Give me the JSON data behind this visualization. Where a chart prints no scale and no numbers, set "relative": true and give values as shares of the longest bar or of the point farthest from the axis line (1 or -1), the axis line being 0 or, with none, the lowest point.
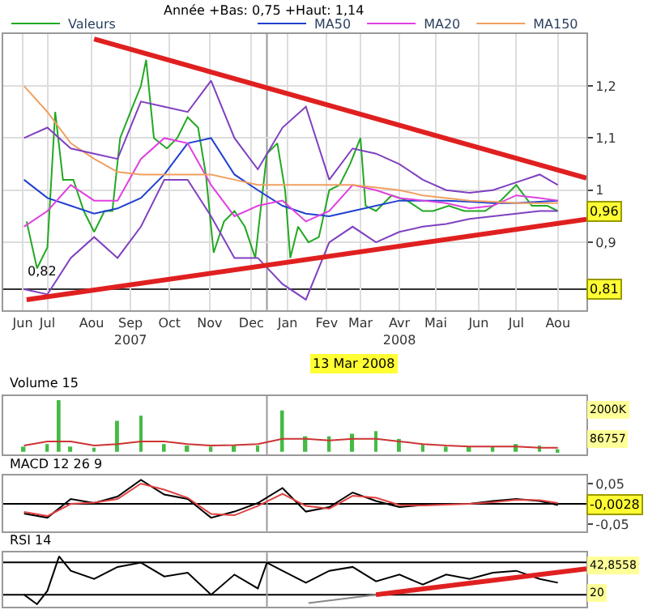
{
  "chart_data": [
    {
      "type": "line",
      "subtitle": "Année +Bas: 0,75 +Haut: 1,14",
      "legend": "top",
      "grid": true,
      "xlim": [
        "2007-06-12",
        "2008-09-03"
      ],
      "xticks": [
        {
          "value": "2007-06-27",
          "label": "Jun"
        },
        {
          "value": "2007-07-16",
          "label": "Jul"
        },
        {
          "value": "2007-08-19",
          "label": "Aou"
        },
        {
          "value": "2007-09-18",
          "label": "Sep\n2007"
        },
        {
          "value": "2007-10-18",
          "label": "Oct"
        },
        {
          "value": "2007-11-18",
          "label": "Nov"
        },
        {
          "value": "2007-12-20",
          "label": "Dec"
        },
        {
          "value": "2008-01-17",
          "label": "Jan"
        },
        {
          "value": "2008-02-16",
          "label": "Fev"
        },
        {
          "value": "2008-03-13",
          "label": "Mar"
        },
        {
          "value": "2008-04-12",
          "label": "Avr\n2008"
        },
        {
          "value": "2008-05-10",
          "label": "Mai"
        },
        {
          "value": "2008-06-12",
          "label": "Jun"
        },
        {
          "value": "2008-07-11",
          "label": "Jul"
        },
        {
          "value": "2008-08-12",
          "label": "Aou"
        }
      ],
      "ylim": [
        0.77,
        1.3
      ],
      "yticks": [
        {
          "value": 0.9,
          "label": "0,9"
        },
        {
          "value": 1,
          "label": "1"
        },
        {
          "value": 1.1,
          "label": "1,1"
        },
        {
          "value": 1.2,
          "label": "1,2"
        }
      ],
      "x": [
        "2007-06-28",
        "2007-07-16",
        "2007-08-03",
        "2007-08-21",
        "2007-09-08",
        "2007-09-26",
        "2007-10-14",
        "2007-11-01",
        "2007-11-19",
        "2007-12-07",
        "2007-12-25",
        "2008-01-13",
        "2008-01-31",
        "2008-02-18",
        "2008-03-07",
        "2008-03-25",
        "2008-04-12",
        "2008-04-30",
        "2008-05-18",
        "2008-06-05",
        "2008-06-23",
        "2008-07-11",
        "2008-07-29",
        "2008-08-12"
      ],
      "series": [
        {
          "name": "Valeurs",
          "color": "#22a822",
          "x": [
            "2007-06-30",
            "2007-07-08",
            "2007-07-16",
            "2007-07-22",
            "2007-07-28",
            "2007-08-05",
            "2007-08-13",
            "2007-08-21",
            "2007-08-29",
            "2007-09-04",
            "2007-09-10",
            "2007-09-18",
            "2007-09-26",
            "2007-09-30",
            "2007-10-06",
            "2007-10-16",
            "2007-10-24",
            "2007-11-01",
            "2007-11-09",
            "2007-11-15",
            "2007-11-21",
            "2007-11-29",
            "2007-12-07",
            "2007-12-15",
            "2007-12-23",
            "2008-01-01",
            "2008-01-09",
            "2008-01-15",
            "2008-01-19",
            "2008-01-25",
            "2008-02-02",
            "2008-02-10",
            "2008-02-18",
            "2008-02-26",
            "2008-03-05",
            "2008-03-13",
            "2008-03-17",
            "2008-03-25",
            "2008-04-06",
            "2008-04-18",
            "2008-04-30",
            "2008-05-08",
            "2008-05-20",
            "2008-06-01",
            "2008-06-17",
            "2008-06-29",
            "2008-07-11",
            "2008-07-23",
            "2008-08-04",
            "2008-08-12"
          ],
          "values": [
            0.94,
            0.85,
            0.89,
            1.15,
            1.02,
            1.02,
            0.96,
            0.92,
            0.96,
            0.96,
            1.1,
            1.15,
            1.2,
            1.25,
            1.1,
            1.08,
            1.1,
            1.14,
            1.12,
            1.03,
            0.88,
            0.94,
            0.96,
            0.93,
            0.87,
            1.07,
            1.09,
            1.0,
            0.87,
            0.93,
            0.9,
            0.91,
            1.0,
            1.01,
            1.05,
            1.1,
            0.97,
            0.96,
            0.99,
            0.98,
            0.96,
            0.96,
            0.97,
            0.96,
            0.96,
            0.98,
            1.01,
            0.97,
            0.97,
            0.96
          ]
        },
        {
          "name": "MA50",
          "color": "#2040d0",
          "values": [
            1.02,
            0.985,
            0.97,
            0.955,
            0.965,
            0.985,
            1.03,
            1.09,
            1.1,
            1.03,
            1.0,
            0.97,
            0.955,
            0.95,
            0.96,
            0.97,
            0.98,
            0.98,
            0.98,
            0.978,
            0.975,
            0.975,
            0.978,
            0.98
          ]
        },
        {
          "name": "MA20",
          "color": "#e040e0",
          "values": [
            0.93,
            0.96,
            1.01,
            0.98,
            0.98,
            1.06,
            1.1,
            1.09,
            1.01,
            0.95,
            0.97,
            0.98,
            0.94,
            0.96,
            1.01,
            1.0,
            0.985,
            0.98,
            0.975,
            0.965,
            0.97,
            0.99,
            0.985,
            0.98
          ]
        },
        {
          "name": "MA150",
          "color": "#f0a060",
          "values": [
            1.2,
            1.15,
            1.09,
            1.06,
            1.035,
            1.03,
            1.03,
            1.03,
            1.03,
            1.02,
            1.01,
            1.01,
            1.01,
            1.01,
            1.01,
            1.005,
            1.0,
            0.99,
            0.985,
            0.98,
            0.978,
            0.975,
            0.975,
            0.975
          ]
        },
        {
          "color": "#8040c0",
          "values": [
            1.1,
            1.12,
            1.08,
            1.07,
            1.06,
            1.17,
            1.16,
            1.15,
            1.21,
            1.1,
            1.04,
            1.12,
            1.16,
            1.02,
            1.08,
            1.07,
            1.05,
            1.02,
            1.0,
            0.995,
            1.0,
            1.015,
            1.03,
            1.01
          ]
        },
        {
          "color": "#8040c0",
          "values": [
            0.81,
            0.8,
            0.87,
            0.91,
            0.87,
            0.93,
            1.02,
            1.02,
            0.95,
            0.87,
            0.87,
            0.82,
            0.79,
            0.9,
            0.93,
            0.9,
            0.92,
            0.93,
            0.935,
            0.945,
            0.95,
            0.955,
            0.96,
            0.96
          ]
        },
        {
          "type": "line",
          "color": "#e02020",
          "x": [
            "2007-08-21",
            "2008-09-03"
          ],
          "values": [
            1.29,
            1.023
          ]
        },
        {
          "type": "line",
          "color": "#e02020",
          "x": [
            "2007-06-30",
            "2008-09-03"
          ],
          "values": [
            0.79,
            0.944
          ]
        }
      ],
      "ref_lines": [
        {
          "axis": "y",
          "value": 0.81,
          "label": "0,81",
          "color": "#333333"
        },
        {
          "axis": "x",
          "value": "2008-01-01",
          "color": "#999999"
        }
      ],
      "annotations": [
        {
          "text": "0,96",
          "y": 0.96
        },
        {
          "text": "0,82",
          "x": "2007-06-28",
          "y": 0.825
        },
        "13 Mar 2008"
      ]
    },
    {
      "type": "bar",
      "title": "Volume 15",
      "relative": true,
      "grid": "x",
      "tick_labels": false,
      "xlim": [
        "2007-06-12",
        "2008-09-03"
      ],
      "x": [
        "2007-06-28",
        "2007-07-16",
        "2007-07-25",
        "2007-08-03",
        "2007-08-21",
        "2007-09-08",
        "2007-09-26",
        "2007-10-14",
        "2007-11-01",
        "2007-11-19",
        "2007-12-07",
        "2007-12-25",
        "2008-01-13",
        "2008-01-31",
        "2008-02-18",
        "2008-03-07",
        "2008-03-25",
        "2008-04-12",
        "2008-04-30",
        "2008-05-18",
        "2008-06-05",
        "2008-06-23",
        "2008-07-11",
        "2008-07-29",
        "2008-08-12"
      ],
      "series": [
        {
          "color": "#44bb44",
          "values": [
            0.1,
            0.15,
            1.0,
            0.1,
            0.08,
            0.6,
            0.7,
            0.15,
            0.12,
            0.1,
            0.12,
            0.12,
            0.8,
            0.3,
            0.3,
            0.35,
            0.4,
            0.25,
            0.15,
            0.1,
            0.1,
            0.1,
            0.15,
            0.12,
            0.05
          ]
        },
        {
          "type": "line",
          "color": "#cc3333",
          "values": [
            0.12,
            0.2,
            0.2,
            0.2,
            0.12,
            0.15,
            0.2,
            0.2,
            0.15,
            0.12,
            0.13,
            0.15,
            0.25,
            0.25,
            0.22,
            0.25,
            0.25,
            0.2,
            0.15,
            0.12,
            0.1,
            0.1,
            0.1,
            0.08,
            0.08
          ]
        }
      ],
      "ref_lines": [
        {
          "axis": "x",
          "value": "2008-01-01",
          "color": "#999999"
        }
      ],
      "annotations": [
        "2000K",
        "86757"
      ]
    },
    {
      "type": "line",
      "title": "MACD 12 26 9",
      "grid": "x",
      "tick_labels": "y",
      "xlim": [
        "2007-06-12",
        "2008-09-03"
      ],
      "ylim": [
        -0.067,
        0.069
      ],
      "yticks": [
        {
          "value": 0.05,
          "label": "0,05"
        },
        {
          "value": -0.05,
          "label": "-0,05"
        }
      ],
      "x": [
        "2007-06-28",
        "2007-07-16",
        "2007-08-03",
        "2007-08-21",
        "2007-09-08",
        "2007-09-26",
        "2007-10-14",
        "2007-11-01",
        "2007-11-19",
        "2007-12-07",
        "2007-12-25",
        "2008-01-13",
        "2008-01-31",
        "2008-02-18",
        "2008-03-07",
        "2008-03-25",
        "2008-04-12",
        "2008-04-30",
        "2008-05-18",
        "2008-06-05",
        "2008-06-23",
        "2008-07-11",
        "2008-07-29",
        "2008-08-12"
      ],
      "series": [
        {
          "color": "#000000",
          "values": [
            -0.024,
            -0.034,
            0.012,
            0.002,
            0.018,
            0.059,
            0.023,
            0.012,
            -0.034,
            -0.019,
            0.002,
            0.039,
            -0.019,
            -0.008,
            0.028,
            0.007,
            -0.008,
            -0.003,
            0.0,
            0.0,
            0.007,
            0.012,
            0.007,
            -0.0028
          ]
        },
        {
          "color": "#e04040",
          "values": [
            -0.02,
            -0.03,
            0.0,
            0.003,
            0.012,
            0.05,
            0.035,
            0.015,
            -0.025,
            -0.028,
            -0.005,
            0.025,
            -0.005,
            -0.012,
            0.02,
            0.015,
            -0.003,
            -0.004,
            -0.002,
            0.0,
            0.004,
            0.01,
            0.009,
            0.002
          ]
        }
      ],
      "ref_lines": [
        {
          "axis": "y",
          "value": 0,
          "color": "#000000"
        },
        {
          "axis": "x",
          "value": "2008-01-01",
          "color": "#999999"
        }
      ],
      "annotations": [
        {
          "text": "-0,0028",
          "y": -0.0028
        }
      ]
    },
    {
      "type": "line",
      "title": "RSI 14",
      "relative": true,
      "grid": "x",
      "tick_labels": false,
      "xlim": [
        "2007-06-12",
        "2008-09-03"
      ],
      "x": [
        "2007-06-28",
        "2007-07-08",
        "2007-07-16",
        "2007-07-25",
        "2007-08-03",
        "2007-08-21",
        "2007-09-08",
        "2007-09-26",
        "2007-10-14",
        "2007-11-01",
        "2007-11-19",
        "2007-12-07",
        "2007-12-25",
        "2008-01-01",
        "2008-01-13",
        "2008-01-31",
        "2008-02-18",
        "2008-03-07",
        "2008-03-25",
        "2008-04-12",
        "2008-04-30",
        "2008-05-18",
        "2008-06-05",
        "2008-06-23",
        "2008-07-11",
        "2008-07-29",
        "2008-08-12"
      ],
      "series": [
        {
          "color": "#000000",
          "values": [
            0.2,
            0.0,
            0.28,
            1.0,
            0.7,
            0.53,
            0.78,
            0.87,
            0.58,
            0.66,
            0.2,
            0.62,
            0.33,
            0.87,
            0.7,
            0.45,
            0.7,
            0.78,
            0.48,
            0.62,
            0.41,
            0.62,
            0.53,
            0.66,
            0.7,
            0.53,
            0.45
          ]
        },
        {
          "type": "line",
          "color": "#888888",
          "x": [
            "2008-02-02",
            "2008-03-25"
          ],
          "values": [
            0.025,
            0.2
          ]
        },
        {
          "type": "line",
          "color": "#e02020",
          "x": [
            "2008-03-25",
            "2008-09-03"
          ],
          "values": [
            0.2,
            0.74
          ]
        }
      ],
      "ref_lines": [
        {
          "axis": "y",
          "value": 0.875,
          "color": "#000000"
        },
        {
          "axis": "y",
          "value": 0.2,
          "color": "#000000"
        },
        {
          "axis": "x",
          "value": "2008-01-01",
          "color": "#999999"
        }
      ],
      "annotations": [
        "42,8558",
        "20"
      ]
    }
  ]
}
